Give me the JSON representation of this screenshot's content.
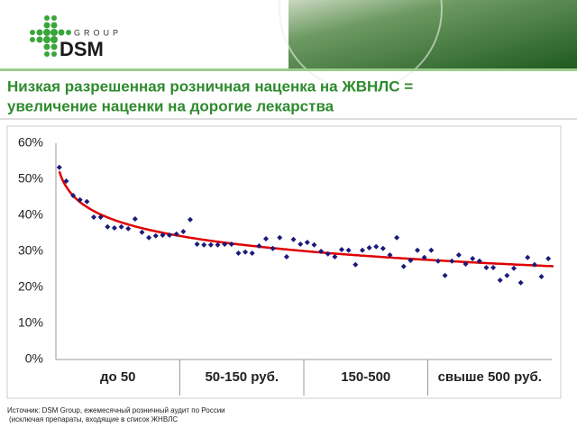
{
  "logo": {
    "group": "GROUP",
    "brand": "DSM"
  },
  "source": [
    "Источник: DSM Group, ежемесячный розничный аудит по России",
    "(исключая препараты, входящие в список ЖНВЛС"
  ],
  "chart_data": {
    "type": "scatter",
    "title": [
      "Низкая разрешенная розничная наценка на ЖВНЛС =",
      "увеличение наценки на дорогие лекарства"
    ],
    "groups": [
      "до 50",
      "50-150 руб.",
      "150-500",
      "свыше 500 руб."
    ],
    "color": "#1a1a7a",
    "trendline": "logarithmic",
    "trend_color": "#e00000",
    "ylim": [
      0,
      60
    ],
    "yticks": [
      {
        "value": 0,
        "label": "0%"
      },
      {
        "value": 10,
        "label": "10%"
      },
      {
        "value": 20,
        "label": "20%"
      },
      {
        "value": 30,
        "label": "30%"
      },
      {
        "value": 40,
        "label": "40%"
      },
      {
        "value": 50,
        "label": "50%"
      },
      {
        "value": 60,
        "label": "60%"
      }
    ],
    "values": [
      53.3,
      49.5,
      45.5,
      44.3,
      43.8,
      39.5,
      39.5,
      36.8,
      36.5,
      36.8,
      36.3,
      39,
      35.3,
      33.8,
      34.3,
      34.5,
      34.5,
      34.8,
      35.5,
      38.8,
      32,
      31.8,
      31.8,
      31.8,
      32,
      32,
      29.5,
      29.8,
      29.5,
      31.5,
      33.5,
      30.8,
      33.8,
      28.5,
      33.3,
      32,
      32.5,
      31.8,
      30,
      29.3,
      28.5,
      30.5,
      30.3,
      26.3,
      30.3,
      31,
      31.3,
      30.8,
      29,
      33.8,
      25.8,
      27.5,
      30.3,
      28.3,
      30.3,
      27.3,
      23.3,
      27.3,
      29,
      26.5,
      28,
      27.3,
      25.5,
      25.5,
      22,
      23.3,
      25.3,
      21.3,
      28.3,
      26.3,
      23,
      28
    ]
  }
}
